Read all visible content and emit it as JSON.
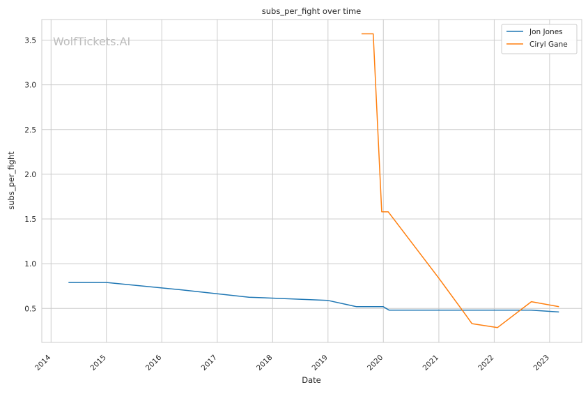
{
  "chart_data": {
    "type": "line",
    "title": "subs_per_fight over time",
    "xlabel": "Date",
    "ylabel": "subs_per_fight",
    "watermark": "WolfTickets.AI",
    "x_ticks": [
      "2014",
      "2015",
      "2016",
      "2017",
      "2018",
      "2019",
      "2020",
      "2021",
      "2022",
      "2023"
    ],
    "y_ticks": [
      "0.5",
      "1.0",
      "1.5",
      "2.0",
      "2.5",
      "3.0",
      "3.5"
    ],
    "xlim": [
      "2013-11-01",
      "2023-08-01"
    ],
    "ylim": [
      0.12,
      3.73
    ],
    "grid": true,
    "legend_position": "top-right",
    "series": [
      {
        "name": "Jon Jones",
        "color": "#1f77b4",
        "points": [
          [
            "2014-04-26",
            0.79
          ],
          [
            "2015-01-03",
            0.79
          ],
          [
            "2016-04-23",
            0.71
          ],
          [
            "2017-07-29",
            0.625
          ],
          [
            "2018-12-29",
            0.59
          ],
          [
            "2019-07-06",
            0.52
          ],
          [
            "2019-12-31",
            0.52
          ],
          [
            "2020-02-08",
            0.48
          ],
          [
            "2022-09-01",
            0.48
          ],
          [
            "2023-03-04",
            0.46
          ]
        ]
      },
      {
        "name": "Ciryl Gane",
        "color": "#ff7f0e",
        "points": [
          [
            "2019-08-10",
            3.57
          ],
          [
            "2019-10-26",
            3.57
          ],
          [
            "2019-12-21",
            1.58
          ],
          [
            "2020-02-02",
            1.58
          ],
          [
            "2020-12-31",
            0.84
          ],
          [
            "2021-06-26",
            0.43
          ],
          [
            "2021-08-07",
            0.33
          ],
          [
            "2022-01-22",
            0.285
          ],
          [
            "2022-09-03",
            0.575
          ],
          [
            "2023-03-04",
            0.52
          ]
        ]
      }
    ]
  }
}
